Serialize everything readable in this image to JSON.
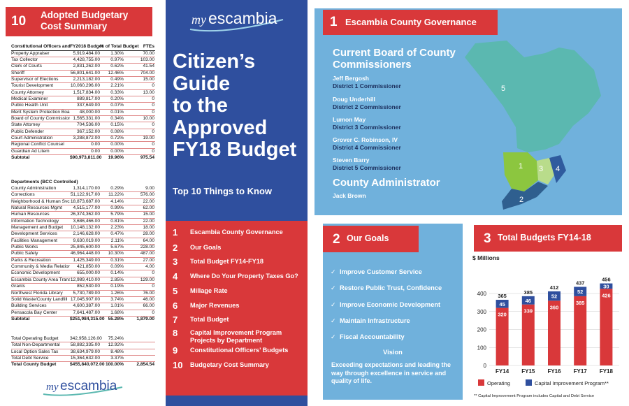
{
  "left": {
    "section_number": "10",
    "section_title": "Adopted Budgetary Cost Summary",
    "headers": [
      "Constitutional Officers and Other Boards/Agencies",
      "FY2018 Budget",
      "% of Total Budget",
      "FTEs"
    ],
    "constitutional": [
      [
        "Property Appraiser",
        "5,919,484.00",
        "1.30%",
        "70.00"
      ],
      [
        "Tax Collector",
        "4,428,755.00",
        "0.97%",
        "103.00"
      ],
      [
        "Clerk of Courts",
        "2,831,262.00",
        "0.62%",
        "41.54"
      ],
      [
        "Sheriff",
        "56,801,641.00",
        "12.46%",
        "704.00"
      ],
      [
        "Supervisor of Elections",
        "2,213,182.00",
        "0.49%",
        "15.00"
      ],
      [
        "Tourist Development",
        "10,060,296.00",
        "2.21%",
        "0"
      ],
      [
        "County Attorney",
        "1,517,834.00",
        "0.33%",
        "13.00"
      ],
      [
        "Medical Examiner",
        "889,817.00",
        "0.20%",
        "0"
      ],
      [
        "Public Health Unit",
        "337,649.00",
        "0.07%",
        "0"
      ],
      [
        "Merit System Protection Board",
        "48,000.00",
        "0.01%",
        "0"
      ],
      [
        "Board of County Commissioners",
        "1,565,331.00",
        "0.34%",
        "10.00"
      ],
      [
        "State Attorney",
        "704,536.00",
        "0.15%",
        "0"
      ],
      [
        "Public Defender",
        "367,152.00",
        "0.08%",
        "0"
      ],
      [
        "Court Administration",
        "3,288,872.00",
        "0.72%",
        "19.00"
      ],
      [
        "Regional Conflict Counsel",
        "0.00",
        "0.00%",
        "0"
      ],
      [
        "Guardian Ad Litem",
        "0.00",
        "0.00%",
        "0"
      ]
    ],
    "constitutional_subtotal": [
      "Subtotal",
      "$90,973,811.00",
      "19.96%",
      "975.54"
    ],
    "departments_label": "Departments (BCC Controlled)",
    "departments": [
      [
        "County Administration",
        "1,314,170.00",
        "0.29%",
        "9.00"
      ],
      [
        "Corrections",
        "51,122,917.00",
        "11.22%",
        "576.00"
      ],
      [
        "Neighborhood & Human Svcs",
        "18,873,687.00",
        "4.14%",
        "22.00"
      ],
      [
        "Natural Resources Mgmt",
        "4,515,177.00",
        "0.99%",
        "62.00"
      ],
      [
        "Human Resources",
        "26,374,362.00",
        "5.79%",
        "15.00"
      ],
      [
        "Information Technology",
        "3,686,466.00",
        "0.81%",
        "22.00"
      ],
      [
        "Management and Budget",
        "10,148,132.00",
        "2.23%",
        "18.00"
      ],
      [
        "Development Services",
        "2,146,628.00",
        "0.47%",
        "28.00"
      ],
      [
        "Facilities Management",
        "9,630,019.00",
        "2.11%",
        "64.00"
      ],
      [
        "Public Works",
        "25,845,600.00",
        "5.67%",
        "228.00"
      ],
      [
        "Public Safety",
        "46,964,448.00",
        "10.30%",
        "487.00"
      ],
      [
        "Parks & Recreation",
        "1,425,349.00",
        "0.31%",
        "27.00"
      ],
      [
        "Community & Media Relations",
        "421,850.00",
        "0.09%",
        "4.00"
      ],
      [
        "Economic Development",
        "655,000.00",
        "0.14%",
        "0"
      ],
      [
        "Escambia County Area Transit",
        "12,989,410.00",
        "2.85%",
        "129.00"
      ],
      [
        "Grants",
        "852,530.00",
        "0.19%",
        "0"
      ],
      [
        "Northwest Florida Library",
        "5,730,789.00",
        "1.26%",
        "76.00"
      ],
      [
        "Solid Waste/County Landfill",
        "17,045,907.00",
        "3.74%",
        "46.00"
      ],
      [
        "Building Services",
        "4,600,387.00",
        "1.01%",
        "66.00"
      ],
      [
        "Pensacola Bay Center",
        "7,641,487.00",
        "1.68%",
        "0"
      ]
    ],
    "departments_subtotal": [
      "Subtotal",
      "$251,984,315.00",
      "55.28%",
      "1,879.00"
    ],
    "totals": [
      [
        "Total Operating Budget",
        "342,958,126.00",
        "75.24%",
        ""
      ],
      [
        "Total Non-Departmental",
        "58,882,335.00",
        "12.92%",
        ""
      ],
      [
        "Local Option Sales Tax",
        "38,634,979.00",
        "8.48%",
        ""
      ],
      [
        "Total Debt Service",
        "15,364,632.00",
        "3.37%",
        ""
      ]
    ],
    "grand_total": [
      "Total County Budget",
      "$455,840,072.00",
      "100.00%",
      "2,854.54"
    ],
    "logo_my": "my",
    "logo_name": "escambia"
  },
  "center": {
    "logo_my": "my",
    "logo_name": "escambia",
    "title_lines": [
      "Citizen’s",
      "Guide",
      "to the",
      "Approved",
      "FY18 Budget"
    ],
    "subtitle": "Top 10 Things to Know",
    "toc": [
      {
        "n": "1",
        "t": "Escambia County Governance"
      },
      {
        "n": "2",
        "t": "Our Goals"
      },
      {
        "n": "3",
        "t": "Total Budget FY14-FY18"
      },
      {
        "n": "4",
        "t": "Where Do Your Property Taxes Go?"
      },
      {
        "n": "5",
        "t": "Millage Rate"
      },
      {
        "n": "6",
        "t": "Major Revenues"
      },
      {
        "n": "7",
        "t": "Total Budget"
      },
      {
        "n": "8",
        "t": "Capital Improvement Program Projects by Department"
      },
      {
        "n": "9",
        "t": "Constitutional Officers’ Budgets"
      },
      {
        "n": "10",
        "t": "Budgetary Cost Summary"
      }
    ]
  },
  "governance": {
    "number": "1",
    "title": "Escambia County Governance",
    "board_heading_1": "Current Board of County",
    "board_heading_2": "Commissioners",
    "commissioners": [
      {
        "name": "Jeff Bergosh",
        "district": "District 1 Commissioner"
      },
      {
        "name": "Doug Underhill",
        "district": "District 2 Commissioner"
      },
      {
        "name": "Lumon May",
        "district": "District 3 Commissioner"
      },
      {
        "name": "Grover C. Robinson, IV",
        "district": "District 4 Commissioner"
      },
      {
        "name": "Steven Barry",
        "district": "District 5 Commissioner"
      }
    ],
    "administrator_heading": "County Administrator",
    "administrator": "Jack Brown",
    "map_labels": [
      "1",
      "2",
      "3",
      "4",
      "5"
    ],
    "map_colors": {
      "d1": "#8cc63f",
      "d2": "#2f5f8f",
      "d3": "#b9dc8b",
      "d4": "#2f5b9e",
      "d5": "#5bb8b0"
    }
  },
  "goals": {
    "number": "2",
    "title": "Our Goals",
    "items": [
      "Improve Customer Service",
      "Restore Public Trust, Confidence",
      "Improve Economic Development",
      "Maintain Infrastructure",
      "Fiscal Accountability"
    ],
    "vision_label": "Vision",
    "vision_text": "Exceeding expectations and leading the way through excellence in service and quality of life."
  },
  "budget": {
    "number": "3",
    "title": "Total Budgets FY14-18"
  },
  "chart_data": {
    "type": "bar",
    "title": "",
    "ylabel": "$ Millions",
    "xlabel": "",
    "categories": [
      "FY14",
      "FY15",
      "FY16",
      "FY17",
      "FY18"
    ],
    "series": [
      {
        "name": "Operating",
        "values": [
          320,
          339,
          360,
          385,
          426
        ],
        "color": "#d9383a"
      },
      {
        "name": "Capital Improvement Program**",
        "values": [
          45,
          46,
          52,
          52,
          30
        ],
        "color": "#2f4f9e"
      }
    ],
    "totals": [
      365,
      385,
      412,
      437,
      456
    ],
    "yticks": [
      "0",
      "100",
      "200",
      "300",
      "400"
    ],
    "ylim": [
      0,
      460
    ],
    "grid": true,
    "legend": "bottom",
    "footnote": "** Capital Improvement Program includes Capital and Debt Service"
  }
}
